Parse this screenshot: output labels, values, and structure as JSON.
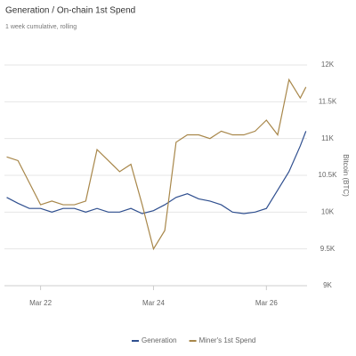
{
  "chart_data": {
    "type": "line",
    "title": "Generation / On-chain 1st Spend",
    "subtitle": "1 week cumulative, rolling",
    "y_axis_label": "Bitcoin (BTC)",
    "x": [
      21.4,
      21.6,
      21.8,
      22.0,
      22.2,
      22.4,
      22.6,
      22.8,
      23.0,
      23.2,
      23.4,
      23.6,
      23.8,
      24.0,
      24.2,
      24.4,
      24.6,
      24.8,
      25.0,
      25.2,
      25.4,
      25.6,
      25.8,
      26.0,
      26.2,
      26.4,
      26.6,
      26.7
    ],
    "series": [
      {
        "name": "Generation",
        "color": "#2f4f8f",
        "values": [
          10200,
          10120,
          10050,
          10050,
          10000,
          10050,
          10050,
          10000,
          10050,
          10000,
          10000,
          10050,
          9980,
          10020,
          10100,
          10200,
          10250,
          10180,
          10150,
          10100,
          10000,
          9980,
          10000,
          10050,
          10300,
          10550,
          10900,
          11100
        ]
      },
      {
        "name": "Miner's 1st Spend",
        "color": "#a8874a",
        "values": [
          10750,
          10700,
          10400,
          10100,
          10150,
          10100,
          10100,
          10150,
          10850,
          10700,
          10550,
          10650,
          10100,
          9500,
          9750,
          10950,
          11050,
          11050,
          11000,
          11100,
          11050,
          11050,
          11100,
          11250,
          11050,
          11800,
          11550,
          11700
        ]
      }
    ],
    "xlim": [
      21.36,
      26.72
    ],
    "xticks": [
      {
        "value": 22,
        "label": "Mar 22"
      },
      {
        "value": 24,
        "label": "Mar 24"
      },
      {
        "value": 26,
        "label": "Mar 26"
      }
    ],
    "ylim": [
      9000,
      12000
    ],
    "yticks": [
      {
        "value": 9000,
        "label": "9K"
      },
      {
        "value": 9500,
        "label": "9.5K"
      },
      {
        "value": 10000,
        "label": "10K"
      },
      {
        "value": 10500,
        "label": "10.5K"
      },
      {
        "value": 11000,
        "label": "11K"
      },
      {
        "value": 11500,
        "label": "11.5K"
      },
      {
        "value": 12000,
        "label": "12K"
      }
    ],
    "grid": true
  }
}
